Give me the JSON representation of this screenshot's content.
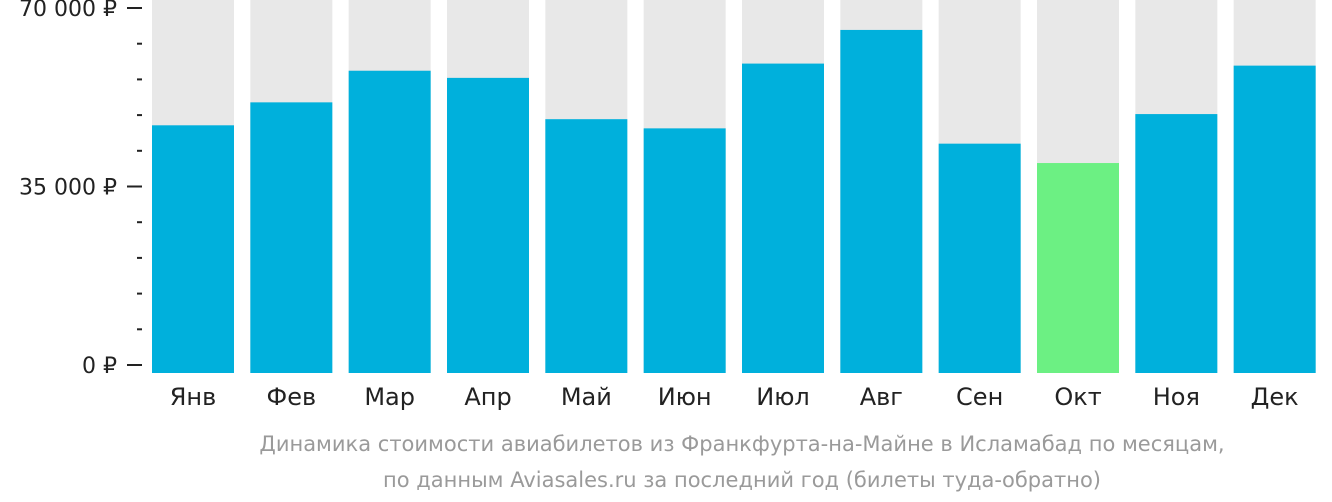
{
  "chart_data": {
    "type": "bar",
    "categories": [
      "Янв",
      "Фев",
      "Мар",
      "Апр",
      "Май",
      "Июн",
      "Июл",
      "Авг",
      "Сен",
      "Окт",
      "Ноя",
      "Дек"
    ],
    "values": [
      47000,
      51500,
      57700,
      56300,
      48200,
      46400,
      59100,
      65700,
      43400,
      39600,
      49200,
      58700
    ],
    "ylim": [
      0,
      70000
    ],
    "y_ticks": [
      {
        "value": 0,
        "label": "0 ₽"
      },
      {
        "value": 35000,
        "label": "35 000 ₽"
      },
      {
        "value": 70000,
        "label": "70 000 ₽"
      }
    ],
    "y_minor_step": 7000,
    "highlight_index": 9,
    "colors": {
      "bar": "#00b0dc",
      "highlight": "#6cf083",
      "background_bar": "#e8e8e8",
      "axis": "#222222"
    },
    "grid": false
  },
  "caption": {
    "line1": "Динамика стоимости авиабилетов из Франкфурта-на-Майне в Исламабад по месяцам,",
    "line2": "по данным Aviasales.ru за последний год (билеты туда-обратно)"
  }
}
